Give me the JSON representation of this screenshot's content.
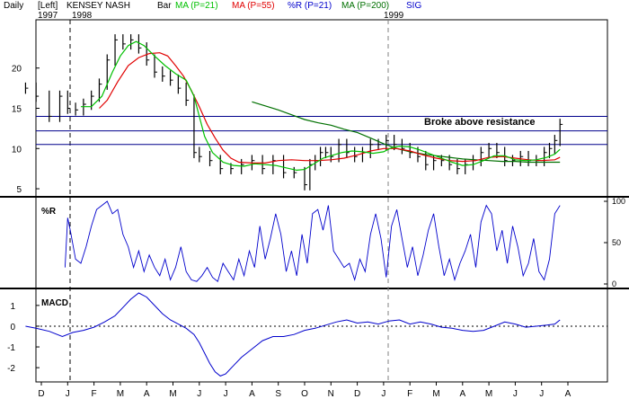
{
  "header": {
    "period": "Daily",
    "axis_side": "[Left]",
    "start_year": "1997",
    "second_year": "1998",
    "title": "KENSEY NASH",
    "bar_label": "Bar",
    "year_marker": "1999",
    "legend": [
      {
        "label": "MA (P=21)",
        "color": "#00c000"
      },
      {
        "label": "MA (P=55)",
        "color": "#e00000"
      },
      {
        "label": "%R (P=21)",
        "color": "#0000cc"
      },
      {
        "label": "MA (P=200)",
        "color": "#007000"
      },
      {
        "label": "SIG",
        "color": "#0000cc"
      }
    ]
  },
  "colors": {
    "price_bars": "#000000",
    "ma21": "#00c000",
    "ma55": "#e00000",
    "ma200": "#007000",
    "percent_r": "#0000cc",
    "macd": "#0000cc",
    "resistance": "#00008b",
    "year_divider": "#000000",
    "year_divider_1999": "#808080"
  },
  "months": [
    "D",
    "J",
    "F",
    "M",
    "A",
    "M",
    "J",
    "J",
    "A",
    "S",
    "O",
    "N",
    "D",
    "J",
    "F",
    "M",
    "A",
    "M",
    "J",
    "J",
    "A"
  ],
  "chart_data": [
    {
      "type": "line",
      "title": "KENSEY NASH",
      "ylim": [
        4,
        26
      ],
      "yticks": [
        5,
        10,
        15,
        20
      ],
      "annotation": "Broke above resistance",
      "resistance_lines": [
        14.0,
        12.2,
        10.5
      ],
      "price_x": [
        -0.6,
        -0.2,
        0.3,
        0.7,
        1.0,
        1.3,
        1.6,
        1.9,
        2.2,
        2.5,
        2.8,
        3.1,
        3.4,
        3.7,
        4.0,
        4.3,
        4.6,
        4.9,
        5.2,
        5.5,
        5.8,
        6.0,
        6.4,
        6.8,
        7.2,
        7.6,
        8.0,
        8.4,
        8.8,
        9.2,
        9.6,
        10.0,
        10.2,
        10.4,
        10.6,
        10.8,
        11.0,
        11.3,
        11.6,
        11.9,
        12.2,
        12.5,
        12.8,
        13.1,
        13.4,
        13.7,
        14.0,
        14.3,
        14.6,
        14.9,
        15.2,
        15.5,
        15.8,
        16.1,
        16.4,
        16.7,
        17.0,
        17.3,
        17.6,
        17.9,
        18.2,
        18.5,
        18.8,
        19.1,
        19.3,
        19.5,
        19.7
      ],
      "price_close": [
        17.5,
        16.5,
        14.0,
        16.5,
        15.0,
        14.8,
        15.5,
        16.5,
        18.0,
        21.0,
        23.5,
        23.0,
        23.5,
        22.5,
        21.0,
        19.5,
        19.0,
        18.5,
        17.5,
        16.0,
        9.5,
        9.0,
        8.5,
        7.5,
        7.5,
        8.0,
        8.5,
        7.5,
        8.5,
        7.0,
        7.0,
        5.5,
        8.0,
        8.5,
        9.5,
        9.5,
        9.0,
        10.5,
        9.5,
        9.0,
        9.5,
        10.5,
        10.5,
        11.0,
        10.5,
        10.0,
        9.5,
        9.0,
        8.0,
        8.5,
        8.5,
        8.0,
        7.5,
        8.0,
        8.5,
        9.5,
        10.0,
        9.5,
        8.5,
        8.5,
        9.0,
        8.5,
        8.5,
        9.5,
        10.0,
        11.0,
        13.0
      ],
      "ma21": [
        [
          1.5,
          15.2
        ],
        [
          1.9,
          15.2
        ],
        [
          2.3,
          16.5
        ],
        [
          2.7,
          19.5
        ],
        [
          3.0,
          21.5
        ],
        [
          3.3,
          22.8
        ],
        [
          3.6,
          23.3
        ],
        [
          3.9,
          22.8
        ],
        [
          4.3,
          21.5
        ],
        [
          4.7,
          20.3
        ],
        [
          5.1,
          19.3
        ],
        [
          5.5,
          18.5
        ],
        [
          5.8,
          16.5
        ],
        [
          6.0,
          14.0
        ],
        [
          6.2,
          11.5
        ],
        [
          6.5,
          9.5
        ],
        [
          6.9,
          8.3
        ],
        [
          7.3,
          7.9
        ],
        [
          7.7,
          7.8
        ],
        [
          8.1,
          8.1
        ],
        [
          8.5,
          8.0
        ],
        [
          8.9,
          7.9
        ],
        [
          9.3,
          7.6
        ],
        [
          9.7,
          7.3
        ],
        [
          10.0,
          7.4
        ],
        [
          10.3,
          8.0
        ],
        [
          10.7,
          8.8
        ],
        [
          11.0,
          9.1
        ],
        [
          11.4,
          9.5
        ],
        [
          11.8,
          9.7
        ],
        [
          12.2,
          9.6
        ],
        [
          12.6,
          9.4
        ],
        [
          13.0,
          9.6
        ],
        [
          13.3,
          10.1
        ],
        [
          13.6,
          10.3
        ],
        [
          14.0,
          10.2
        ],
        [
          14.4,
          9.8
        ],
        [
          14.8,
          9.3
        ],
        [
          15.2,
          8.8
        ],
        [
          15.6,
          8.3
        ],
        [
          16.0,
          7.9
        ],
        [
          16.4,
          8.0
        ],
        [
          16.8,
          8.5
        ],
        [
          17.2,
          9.1
        ],
        [
          17.6,
          9.1
        ],
        [
          18.0,
          8.6
        ],
        [
          18.4,
          8.5
        ],
        [
          18.8,
          8.6
        ],
        [
          19.2,
          8.9
        ],
        [
          19.5,
          9.3
        ],
        [
          19.7,
          9.9
        ]
      ],
      "ma55": [
        [
          2.2,
          15.0
        ],
        [
          2.5,
          16.0
        ],
        [
          2.9,
          18.3
        ],
        [
          3.3,
          20.3
        ],
        [
          3.7,
          21.3
        ],
        [
          4.1,
          21.8
        ],
        [
          4.5,
          21.9
        ],
        [
          4.8,
          21.5
        ],
        [
          5.1,
          20.3
        ],
        [
          5.4,
          19.0
        ],
        [
          5.7,
          17.2
        ],
        [
          6.0,
          15.2
        ],
        [
          6.3,
          13.0
        ],
        [
          6.6,
          11.3
        ],
        [
          6.9,
          9.8
        ],
        [
          7.2,
          8.8
        ],
        [
          7.5,
          8.3
        ],
        [
          8.0,
          8.2
        ],
        [
          8.5,
          8.2
        ],
        [
          9.0,
          8.5
        ],
        [
          9.5,
          8.6
        ],
        [
          10.0,
          8.5
        ],
        [
          10.5,
          8.5
        ],
        [
          11.0,
          8.6
        ],
        [
          11.5,
          8.8
        ],
        [
          12.0,
          9.2
        ],
        [
          12.5,
          9.7
        ],
        [
          13.0,
          10.0
        ],
        [
          13.5,
          10.0
        ],
        [
          14.0,
          9.7
        ],
        [
          14.5,
          9.2
        ],
        [
          15.0,
          8.8
        ],
        [
          15.5,
          8.5
        ],
        [
          16.0,
          8.4
        ],
        [
          16.5,
          8.5
        ],
        [
          17.0,
          8.9
        ],
        [
          17.5,
          9.0
        ],
        [
          18.0,
          8.8
        ],
        [
          18.5,
          8.6
        ],
        [
          19.0,
          8.5
        ],
        [
          19.5,
          8.6
        ],
        [
          19.7,
          8.9
        ]
      ],
      "ma200": [
        [
          8.0,
          15.8
        ],
        [
          8.5,
          15.3
        ],
        [
          9.0,
          14.8
        ],
        [
          9.5,
          14.2
        ],
        [
          10.0,
          13.6
        ],
        [
          10.5,
          13.2
        ],
        [
          11.0,
          12.9
        ],
        [
          11.5,
          12.4
        ],
        [
          12.0,
          12.0
        ],
        [
          12.5,
          11.3
        ],
        [
          13.0,
          10.6
        ],
        [
          13.5,
          10.0
        ],
        [
          14.0,
          9.6
        ],
        [
          14.5,
          9.3
        ],
        [
          15.0,
          9.1
        ],
        [
          15.5,
          8.9
        ],
        [
          16.0,
          8.7
        ],
        [
          16.5,
          8.6
        ],
        [
          17.0,
          8.5
        ],
        [
          17.5,
          8.4
        ],
        [
          18.0,
          8.4
        ],
        [
          18.5,
          8.3
        ],
        [
          19.0,
          8.3
        ],
        [
          19.5,
          8.3
        ],
        [
          19.7,
          8.3
        ]
      ]
    },
    {
      "type": "line",
      "title": "%R",
      "ylim": [
        0,
        100
      ],
      "yticks": [
        0,
        50,
        100
      ],
      "x": [
        0.9,
        1.0,
        1.1,
        1.3,
        1.5,
        1.7,
        1.9,
        2.1,
        2.3,
        2.5,
        2.7,
        2.9,
        3.1,
        3.3,
        3.5,
        3.7,
        3.9,
        4.1,
        4.3,
        4.5,
        4.7,
        4.9,
        5.1,
        5.3,
        5.5,
        5.7,
        5.9,
        6.1,
        6.3,
        6.5,
        6.7,
        6.9,
        7.1,
        7.3,
        7.5,
        7.7,
        7.9,
        8.1,
        8.3,
        8.5,
        8.7,
        8.9,
        9.1,
        9.3,
        9.5,
        9.7,
        9.9,
        10.1,
        10.3,
        10.5,
        10.7,
        10.9,
        11.1,
        11.3,
        11.5,
        11.7,
        11.9,
        12.1,
        12.3,
        12.5,
        12.7,
        12.9,
        13.1,
        13.3,
        13.5,
        13.7,
        13.9,
        14.1,
        14.3,
        14.5,
        14.7,
        14.9,
        15.1,
        15.3,
        15.5,
        15.7,
        15.9,
        16.1,
        16.3,
        16.5,
        16.7,
        16.9,
        17.1,
        17.3,
        17.5,
        17.7,
        17.9,
        18.1,
        18.3,
        18.5,
        18.7,
        18.9,
        19.1,
        19.3,
        19.5,
        19.7
      ],
      "values": [
        20,
        80,
        65,
        30,
        25,
        45,
        70,
        90,
        95,
        100,
        85,
        90,
        60,
        45,
        20,
        40,
        15,
        35,
        20,
        10,
        30,
        5,
        20,
        45,
        15,
        5,
        3,
        10,
        20,
        8,
        3,
        25,
        15,
        5,
        30,
        10,
        40,
        20,
        70,
        30,
        55,
        85,
        60,
        15,
        40,
        10,
        60,
        25,
        85,
        90,
        65,
        95,
        40,
        30,
        20,
        25,
        5,
        30,
        15,
        60,
        85,
        55,
        8,
        70,
        90,
        55,
        20,
        45,
        10,
        35,
        65,
        85,
        45,
        10,
        30,
        5,
        25,
        40,
        60,
        20,
        75,
        95,
        85,
        40,
        65,
        25,
        70,
        45,
        10,
        25,
        55,
        15,
        5,
        30,
        85,
        95
      ],
      "values_note": "raw %R reading"
    },
    {
      "type": "line",
      "title": "MACD",
      "ylim": [
        -2.6,
        1.6
      ],
      "yticks": [
        -2,
        -1,
        0,
        1
      ],
      "zero_line": 0,
      "x": [
        -0.6,
        -0.2,
        0.3,
        0.8,
        1.2,
        1.6,
        2.0,
        2.4,
        2.8,
        3.1,
        3.4,
        3.7,
        4.0,
        4.3,
        4.6,
        4.9,
        5.2,
        5.5,
        5.8,
        6.0,
        6.2,
        6.4,
        6.6,
        6.8,
        7.0,
        7.3,
        7.6,
        8.0,
        8.4,
        8.8,
        9.2,
        9.6,
        10.0,
        10.4,
        10.8,
        11.2,
        11.6,
        12.0,
        12.4,
        12.8,
        13.2,
        13.6,
        14.0,
        14.4,
        14.8,
        15.2,
        15.6,
        16.0,
        16.4,
        16.8,
        17.2,
        17.6,
        18.0,
        18.4,
        18.8,
        19.2,
        19.5,
        19.7
      ],
      "values": [
        0.0,
        -0.1,
        -0.25,
        -0.5,
        -0.3,
        -0.2,
        -0.05,
        0.2,
        0.5,
        0.9,
        1.3,
        1.6,
        1.4,
        1.0,
        0.6,
        0.3,
        0.1,
        -0.1,
        -0.4,
        -0.8,
        -1.3,
        -1.8,
        -2.2,
        -2.4,
        -2.3,
        -1.9,
        -1.5,
        -1.1,
        -0.7,
        -0.5,
        -0.5,
        -0.4,
        -0.2,
        -0.1,
        0.05,
        0.2,
        0.3,
        0.15,
        0.2,
        0.1,
        0.25,
        0.3,
        0.1,
        0.2,
        0.1,
        -0.05,
        -0.1,
        -0.2,
        -0.25,
        -0.2,
        0.0,
        0.2,
        0.1,
        -0.05,
        0.0,
        0.05,
        0.1,
        0.3
      ]
    }
  ]
}
